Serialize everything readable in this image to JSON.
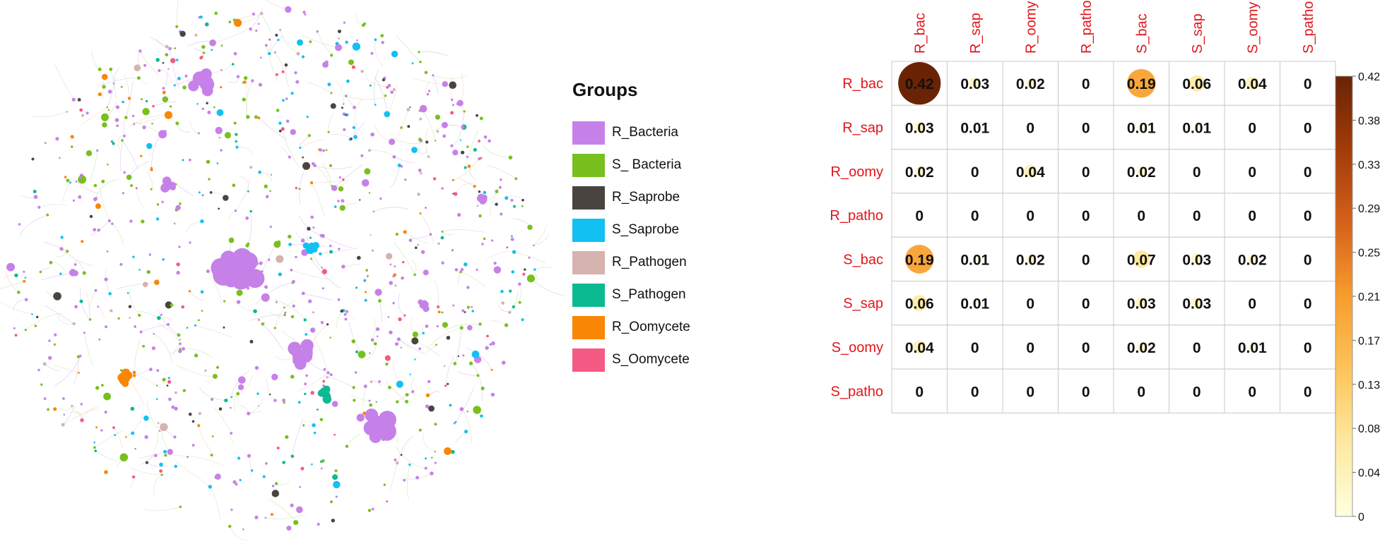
{
  "legend": {
    "title": "Groups",
    "items": [
      {
        "label": "R_Bacteria",
        "color": "#C681E8"
      },
      {
        "label": "S_ Bacteria",
        "color": "#78C01E"
      },
      {
        "label": "R_Saprobe",
        "color": "#494440"
      },
      {
        "label": "S_Saprobe",
        "color": "#12C1F2"
      },
      {
        "label": "R_Pathogen",
        "color": "#D6B3AE"
      },
      {
        "label": "S_Pathogen",
        "color": "#0CBA92"
      },
      {
        "label": "R_Oomycete",
        "color": "#F98605"
      },
      {
        "label": "S_Oomycete",
        "color": "#F55A84"
      }
    ]
  },
  "chart_data": [
    {
      "type": "network",
      "description_visible": "circular co-occurrence network of OTUs colored by group"
    },
    {
      "type": "heatmap",
      "rows": [
        "R_bac",
        "R_sap",
        "R_oomy",
        "R_patho",
        "S_bac",
        "S_sap",
        "S_oomy",
        "S_patho"
      ],
      "columns": [
        "R_bac",
        "R_sap",
        "R_oomy",
        "R_patho",
        "S_bac",
        "S_sap",
        "S_oomy",
        "S_patho"
      ],
      "cell_labels": [
        [
          "0.42",
          "0.03",
          "0.02",
          "0",
          "0.19",
          "0.06",
          "0.04",
          "0"
        ],
        [
          "0.03",
          "0.01",
          "0",
          "0",
          "0.01",
          "0.01",
          "0",
          "0"
        ],
        [
          "0.02",
          "0",
          "0.04",
          "0",
          "0.02",
          "0",
          "0",
          "0"
        ],
        [
          "0",
          "0",
          "0",
          "0",
          "0",
          "0",
          "0",
          "0"
        ],
        [
          "0.19",
          "0.01",
          "0.02",
          "0",
          "0.07",
          "0.03",
          "0.02",
          "0"
        ],
        [
          "0.06",
          "0.01",
          "0",
          "0",
          "0.03",
          "0.03",
          "0",
          "0"
        ],
        [
          "0.04",
          "0",
          "0",
          "0",
          "0.02",
          "0",
          "0.01",
          "0"
        ],
        [
          "0",
          "0",
          "0",
          "0",
          "0",
          "0",
          "0",
          "0"
        ]
      ],
      "colorbar": {
        "ticks": [
          "0.42",
          "0.38",
          "0.33",
          "0.29",
          "0.25",
          "0.21",
          "0.17",
          "0.13",
          "0.08",
          "0.04",
          "0"
        ],
        "range": [
          0,
          0.42
        ],
        "colors": [
          "#FFFFE0",
          "#FEE9A0",
          "#FDC45A",
          "#F89C2E",
          "#D5611A",
          "#A23B0A",
          "#6A2305"
        ]
      },
      "label_color": "#E0161C"
    }
  ]
}
